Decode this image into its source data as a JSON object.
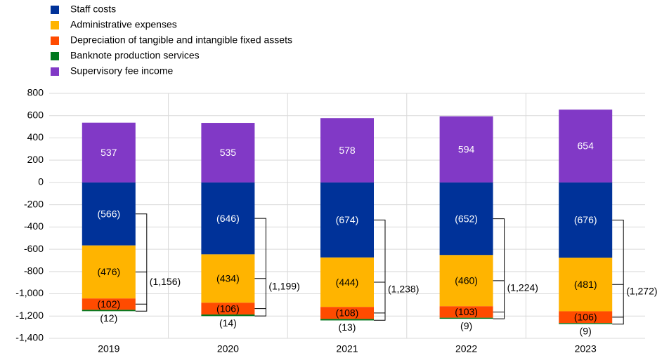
{
  "chart_data": {
    "type": "stacked_bar",
    "categories": [
      "2019",
      "2020",
      "2021",
      "2022",
      "2023"
    ],
    "series": [
      {
        "name": "Staff costs",
        "color": "#003299",
        "values": [
          -566,
          -646,
          -674,
          -652,
          -676
        ],
        "value_labels": [
          "(566)",
          "(646)",
          "(674)",
          "(652)",
          "(676)"
        ]
      },
      {
        "name": "Administrative expenses",
        "color": "#ffb400",
        "values": [
          -476,
          -434,
          -444,
          -460,
          -481
        ],
        "value_labels": [
          "(476)",
          "(434)",
          "(444)",
          "(460)",
          "(481)"
        ]
      },
      {
        "name": "Depreciation of tangible and intangible fixed assets",
        "color": "#ff4b00",
        "values": [
          -102,
          -106,
          -108,
          -103,
          -106
        ],
        "value_labels": [
          "(102)",
          "(106)",
          "(108)",
          "(103)",
          "(106)"
        ]
      },
      {
        "name": "Banknote production services",
        "color": "#00781e",
        "values": [
          -12,
          -14,
          -13,
          -9,
          -9
        ],
        "value_labels": [
          "(12)",
          "(14)",
          "(13)",
          "(9)",
          "(9)"
        ]
      },
      {
        "name": "Supervisory fee income",
        "color": "#8139c6",
        "values": [
          537,
          535,
          578,
          594,
          654
        ]
      }
    ],
    "totals": [
      {
        "value": -1156,
        "label": "(1,156)"
      },
      {
        "value": -1199,
        "label": "(1,199)"
      },
      {
        "value": -1238,
        "label": "(1,238)"
      },
      {
        "value": -1224,
        "label": "(1,224)"
      },
      {
        "value": -1272,
        "label": "(1,272)"
      }
    ],
    "ylim": [
      -1400,
      800
    ],
    "yticks": [
      800,
      600,
      400,
      200,
      0,
      -200,
      -400,
      -600,
      -800,
      {
        "value": -1000,
        "label": "-1,000"
      },
      {
        "value": -1200,
        "label": "-1,200"
      },
      {
        "value": -1400,
        "label": "-1,400"
      }
    ],
    "grid": true
  }
}
